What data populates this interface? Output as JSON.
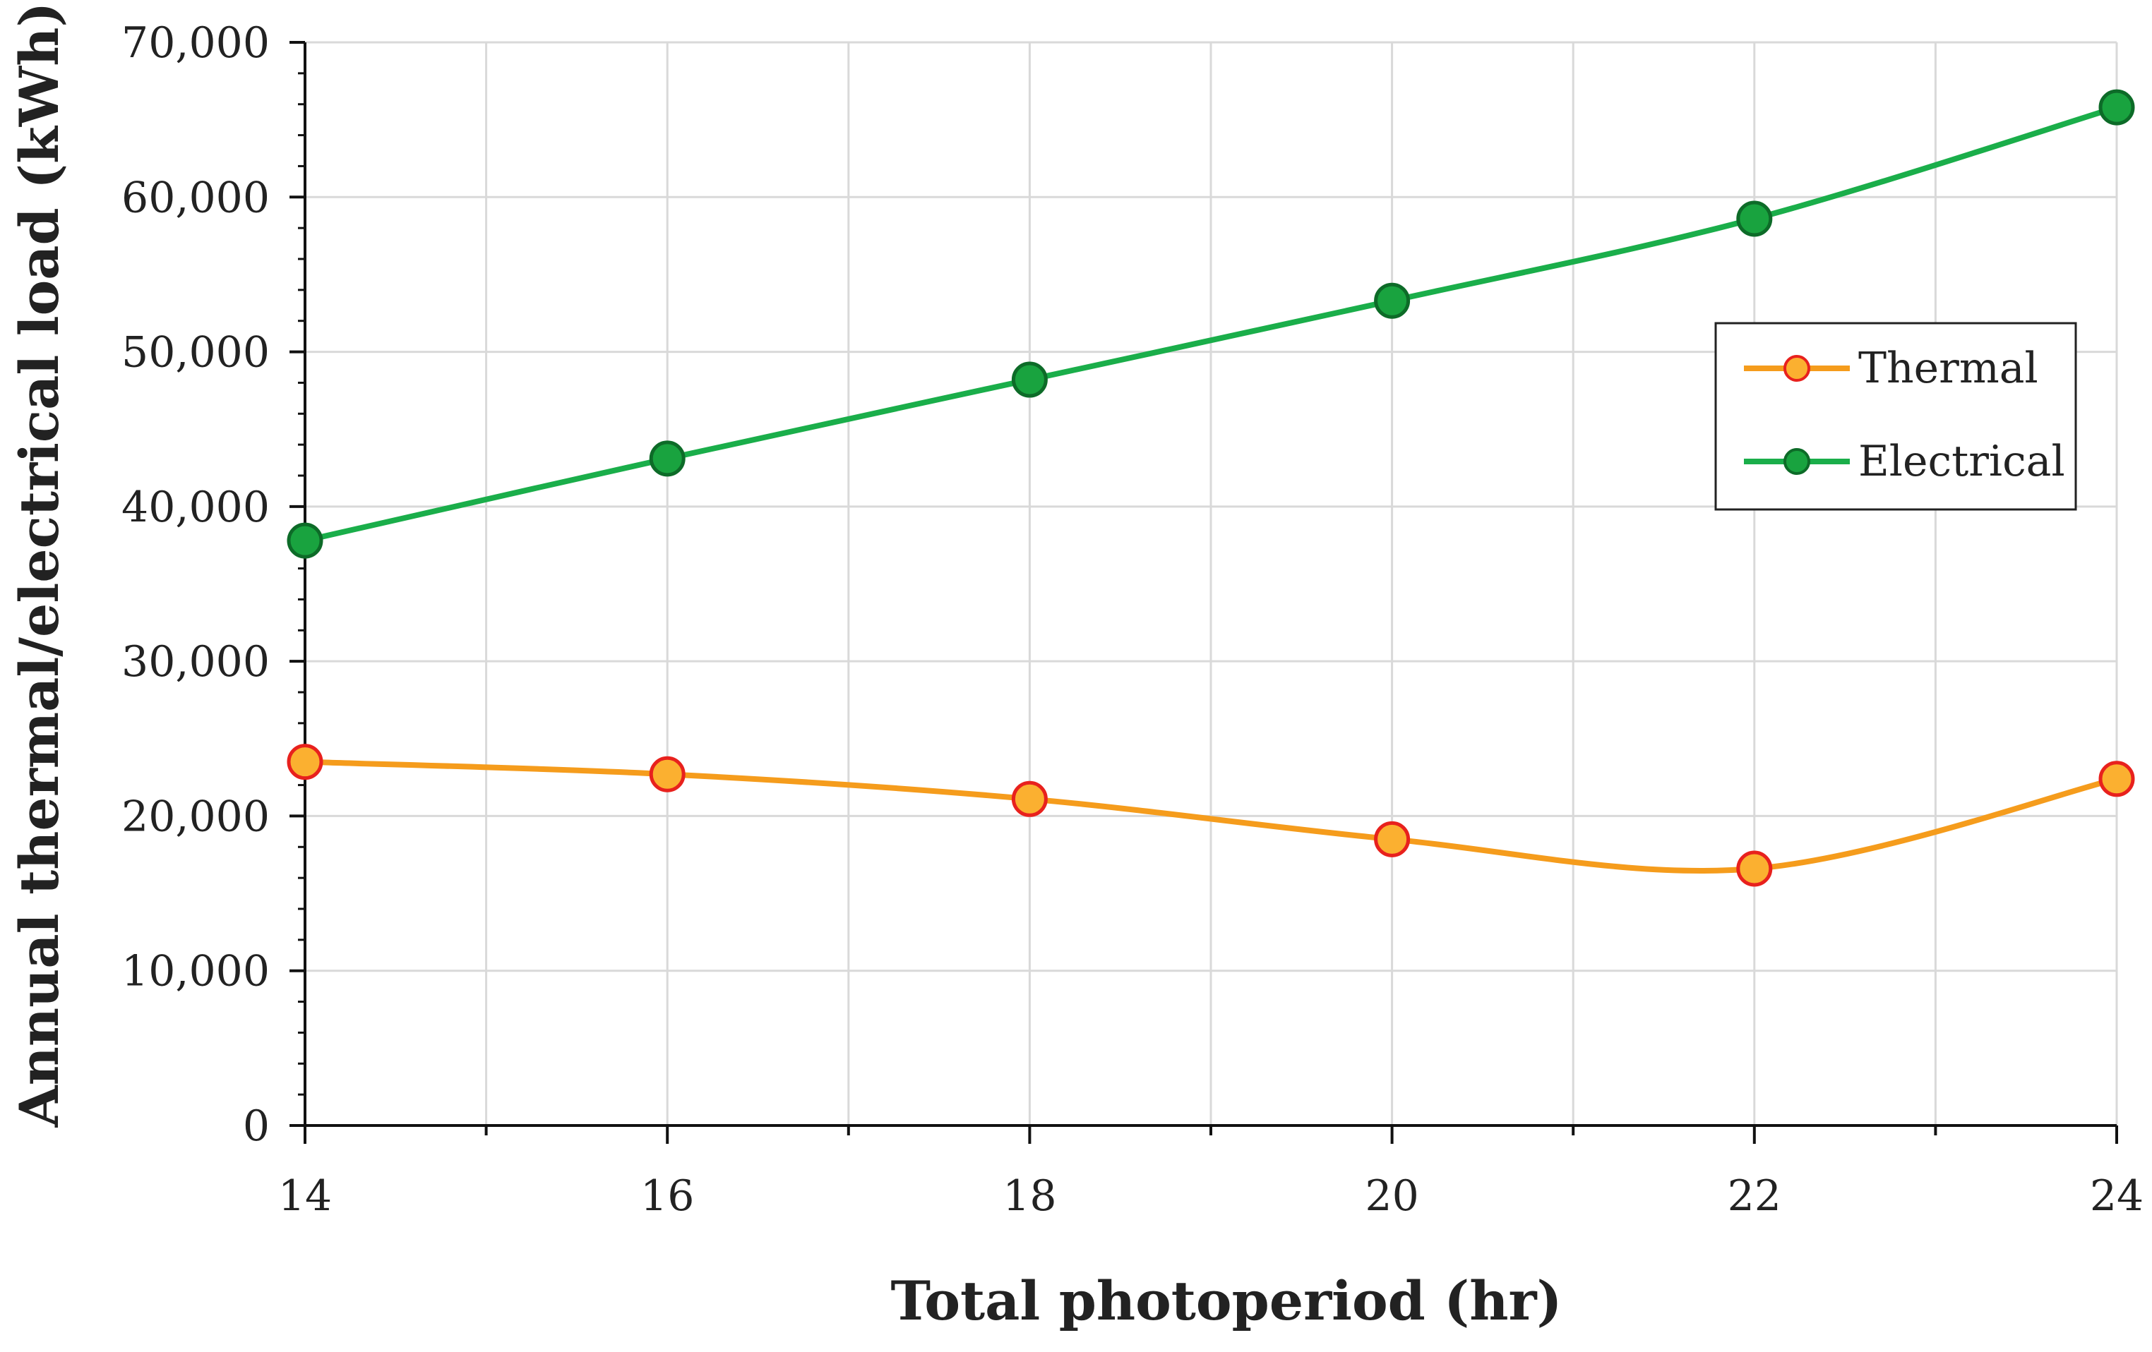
{
  "chart_data": {
    "type": "line",
    "xlabel": "Total photoperiod (hr)",
    "ylabel": "Annual thermal/electrical load (kWh)",
    "x": [
      14,
      16,
      18,
      20,
      22,
      24
    ],
    "xlim": [
      14,
      24
    ],
    "ylim": [
      0,
      70000
    ],
    "x_ticks": [
      "14",
      "16",
      "18",
      "20",
      "22",
      "24"
    ],
    "y_ticks": [
      "0",
      "10,000",
      "20,000",
      "30,000",
      "40,000",
      "50,000",
      "60,000",
      "70,000"
    ],
    "grid": true,
    "smooth": true,
    "legend_position": "right",
    "series": [
      {
        "name": "Thermal",
        "values": [
          23500,
          22700,
          21100,
          18500,
          16600,
          22400
        ],
        "line_color": "#f59c1c",
        "marker_fill": "#fbb030",
        "marker_stroke": "#e8211d"
      },
      {
        "name": "Electrical",
        "values": [
          37800,
          43100,
          48200,
          53300,
          58600,
          65800
        ],
        "line_color": "#1aae4a",
        "marker_fill": "#19a33f",
        "marker_stroke": "#0d6b28"
      }
    ]
  }
}
